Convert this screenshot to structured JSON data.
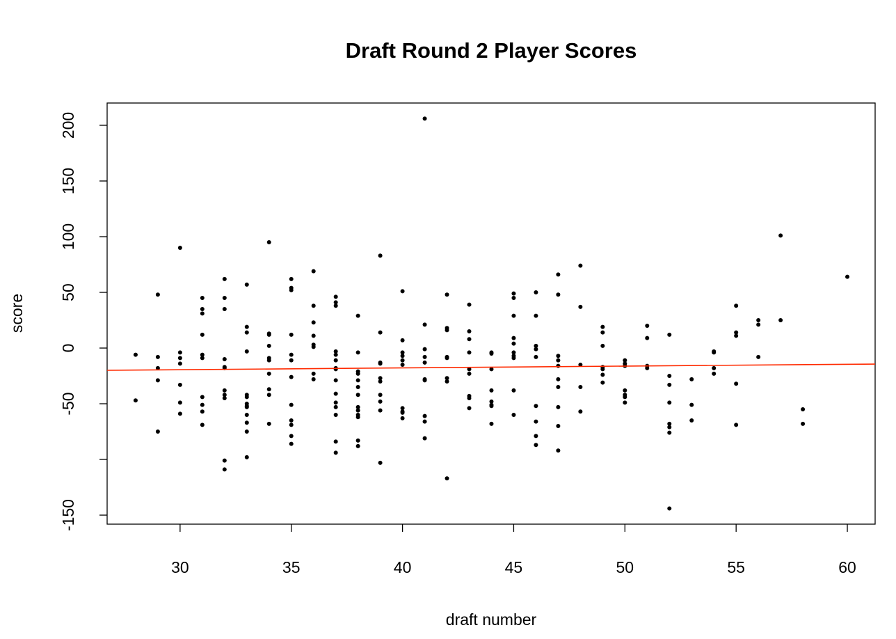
{
  "chart_data": {
    "type": "scatter",
    "title": "Draft Round 2 Player Scores",
    "x_label": "draft number",
    "y_label": "score",
    "x": [
      28,
      28,
      29,
      29,
      29,
      29,
      29,
      30,
      30,
      30,
      30,
      30,
      30,
      30,
      31,
      31,
      31,
      31,
      31,
      31,
      31,
      31,
      31,
      31,
      32,
      32,
      32,
      32,
      32,
      32,
      32,
      32,
      32,
      32,
      32,
      33,
      33,
      33,
      33,
      33,
      33,
      33,
      33,
      33,
      33,
      33,
      33,
      33,
      34,
      34,
      34,
      34,
      34,
      34,
      34,
      34,
      34,
      34,
      35,
      35,
      35,
      35,
      35,
      35,
      35,
      35,
      35,
      35,
      35,
      35,
      36,
      36,
      36,
      36,
      36,
      36,
      36,
      36,
      37,
      37,
      37,
      37,
      37,
      37,
      37,
      37,
      37,
      37,
      37,
      37,
      37,
      37,
      37,
      38,
      38,
      38,
      38,
      38,
      38,
      38,
      38,
      38,
      38,
      38,
      38,
      38,
      39,
      39,
      39,
      39,
      39,
      39,
      39,
      39,
      39,
      39,
      40,
      40,
      40,
      40,
      40,
      40,
      40,
      40,
      40,
      40,
      41,
      41,
      41,
      41,
      41,
      41,
      41,
      41,
      41,
      41,
      42,
      42,
      42,
      42,
      42,
      42,
      42,
      42,
      43,
      43,
      43,
      43,
      43,
      43,
      43,
      43,
      43,
      44,
      44,
      44,
      44,
      44,
      44,
      44,
      44,
      45,
      45,
      45,
      45,
      45,
      45,
      45,
      45,
      45,
      45,
      46,
      46,
      46,
      46,
      46,
      46,
      46,
      46,
      46,
      47,
      47,
      47,
      47,
      47,
      47,
      47,
      47,
      47,
      47,
      48,
      48,
      48,
      48,
      48,
      49,
      49,
      49,
      49,
      49,
      49,
      49,
      50,
      50,
      50,
      50,
      50,
      50,
      50,
      51,
      51,
      51,
      51,
      52,
      52,
      52,
      52,
      52,
      52,
      52,
      52,
      53,
      53,
      53,
      54,
      54,
      54,
      54,
      55,
      55,
      55,
      55,
      55,
      56,
      56,
      56,
      57,
      57,
      58,
      58,
      60
    ],
    "y": [
      -6,
      -47,
      48,
      -8,
      -18,
      -29,
      -75,
      90,
      -4,
      -9,
      -14,
      -33,
      -49,
      -59,
      45,
      35,
      31,
      12,
      -6,
      -9,
      -44,
      -51,
      -57,
      -69,
      62,
      45,
      35,
      -10,
      -17,
      -18,
      -38,
      -42,
      -45,
      -101,
      -109,
      57,
      19,
      14,
      -3,
      -42,
      -44,
      -50,
      -52,
      -53,
      -60,
      -67,
      -75,
      -98,
      95,
      13,
      12,
      2,
      -9,
      -11,
      -23,
      -37,
      -42,
      -68,
      62,
      54,
      52,
      12,
      -6,
      -11,
      -26,
      -51,
      -65,
      -69,
      -79,
      -86,
      69,
      38,
      23,
      11,
      3,
      1,
      -23,
      -28,
      46,
      41,
      38,
      -3,
      -6,
      -11,
      -18,
      -19,
      -29,
      -41,
      -49,
      -53,
      -60,
      -84,
      -94,
      29,
      -4,
      -21,
      -23,
      -29,
      -35,
      -42,
      -53,
      -56,
      -60,
      -62,
      -83,
      -88,
      83,
      14,
      -13,
      -14,
      -27,
      -30,
      -42,
      -48,
      -56,
      -103,
      51,
      7,
      -4,
      -7,
      -11,
      -15,
      -54,
      -57,
      -58,
      -63,
      206,
      21,
      -1,
      -8,
      -13,
      -28,
      -29,
      -61,
      -66,
      -81,
      48,
      18,
      16,
      -8,
      -9,
      -27,
      -30,
      -117,
      39,
      15,
      8,
      -4,
      -19,
      -23,
      -43,
      -45,
      -54,
      -4,
      -5,
      -19,
      -38,
      -48,
      -51,
      -52,
      -68,
      49,
      45,
      29,
      9,
      4,
      -4,
      -7,
      -9,
      -38,
      -60,
      50,
      29,
      2,
      -1,
      -8,
      -52,
      -66,
      -79,
      -87,
      66,
      48,
      -7,
      -11,
      -16,
      -28,
      -35,
      -53,
      -70,
      -92,
      74,
      37,
      -15,
      -35,
      -57,
      19,
      14,
      2,
      -17,
      -19,
      -24,
      -31,
      -11,
      -14,
      -16,
      -38,
      -42,
      -44,
      -49,
      20,
      9,
      -16,
      -18,
      12,
      -25,
      -33,
      -49,
      -68,
      -71,
      -76,
      -144,
      -28,
      -51,
      -65,
      -3,
      -4,
      -18,
      -23,
      38,
      14,
      11,
      -32,
      -69,
      25,
      21,
      -8,
      101,
      25,
      -55,
      -68,
      64
    ],
    "color": "#000000",
    "trend_line": {
      "intercept": -24.3,
      "slope": 0.162,
      "color": "#ff2a00"
    },
    "xlim": [
      26.72,
      61.25
    ],
    "ylim": [
      -158.1,
      220
    ],
    "xticks": [
      30,
      35,
      40,
      45,
      50,
      55,
      60
    ],
    "yticks": [
      -150,
      {
        "value": -100,
        "label": null
      },
      -50,
      0,
      50,
      100,
      150,
      200
    ]
  }
}
